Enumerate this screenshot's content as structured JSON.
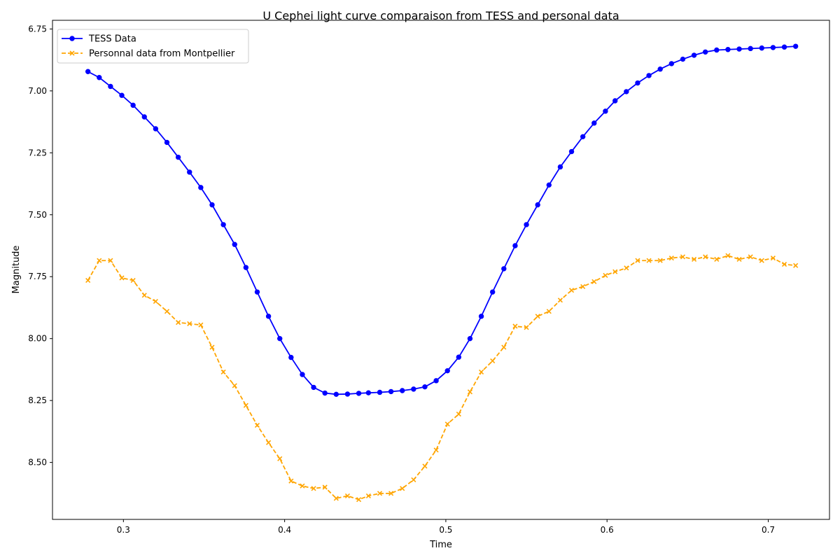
{
  "chart_data": {
    "type": "line",
    "title": "U Cephei light curve comparaison from TESS and personal data",
    "xlabel": "Time",
    "ylabel": "Magnitude",
    "xlim": [
      0.256,
      0.738
    ],
    "ylim": [
      8.73,
      6.715
    ],
    "y_inverted": true,
    "grid": false,
    "legend_position": "top-left",
    "x_ticks": [
      0.3,
      0.4,
      0.5,
      0.6,
      0.7
    ],
    "x_tick_labels": [
      "0.3",
      "0.4",
      "0.5",
      "0.6",
      "0.7"
    ],
    "y_ticks": [
      6.75,
      7.0,
      7.25,
      7.5,
      7.75,
      8.0,
      8.25,
      8.5
    ],
    "y_tick_labels": [
      "6.75",
      "7.00",
      "7.25",
      "7.50",
      "7.75",
      "8.00",
      "8.25",
      "8.50"
    ],
    "x": [
      0.278,
      0.285,
      0.292,
      0.299,
      0.306,
      0.313,
      0.32,
      0.327,
      0.334,
      0.341,
      0.348,
      0.355,
      0.362,
      0.369,
      0.376,
      0.383,
      0.39,
      0.397,
      0.404,
      0.411,
      0.418,
      0.425,
      0.432,
      0.439,
      0.446,
      0.452,
      0.459,
      0.466,
      0.473,
      0.48,
      0.487,
      0.494,
      0.501,
      0.508,
      0.515,
      0.522,
      0.529,
      0.536,
      0.543,
      0.55,
      0.557,
      0.564,
      0.571,
      0.578,
      0.585,
      0.592,
      0.599,
      0.605,
      0.612,
      0.619,
      0.626,
      0.633,
      0.64,
      0.647,
      0.654,
      0.661,
      0.668,
      0.675,
      0.682,
      0.689,
      0.696,
      0.703,
      0.71,
      0.717
    ],
    "series": [
      {
        "name": "TESS Data",
        "color": "#0000ff",
        "line_style": "solid",
        "marker": "circle",
        "values": [
          6.922,
          6.946,
          6.982,
          7.018,
          7.058,
          7.105,
          7.153,
          7.208,
          7.268,
          7.328,
          7.39,
          7.46,
          7.54,
          7.62,
          7.713,
          7.812,
          7.91,
          8.0,
          8.076,
          8.145,
          8.197,
          8.22,
          8.225,
          8.224,
          8.221,
          8.219,
          8.217,
          8.214,
          8.21,
          8.204,
          8.195,
          8.17,
          8.13,
          8.075,
          8.0,
          7.91,
          7.812,
          7.718,
          7.625,
          7.54,
          7.46,
          7.38,
          7.307,
          7.245,
          7.185,
          7.13,
          7.082,
          7.04,
          7.003,
          6.968,
          6.938,
          6.912,
          6.89,
          6.872,
          6.856,
          6.843,
          6.835,
          6.833,
          6.831,
          6.829,
          6.827,
          6.825,
          6.823,
          6.82
        ]
      },
      {
        "name": "Personnal data from Montpellier",
        "color": "#ffa500",
        "line_style": "dashed",
        "marker": "x",
        "values": [
          7.765,
          7.685,
          7.685,
          7.755,
          7.765,
          7.825,
          7.85,
          7.89,
          7.935,
          7.94,
          7.945,
          8.035,
          8.135,
          8.19,
          8.27,
          8.35,
          8.42,
          8.485,
          8.575,
          8.595,
          8.605,
          8.6,
          8.645,
          8.635,
          8.65,
          8.635,
          8.625,
          8.625,
          8.605,
          8.57,
          8.515,
          8.45,
          8.345,
          8.305,
          8.215,
          8.135,
          8.09,
          8.035,
          7.95,
          7.955,
          7.91,
          7.89,
          7.845,
          7.805,
          7.79,
          7.77,
          7.745,
          7.73,
          7.715,
          7.685,
          7.685,
          7.685,
          7.675,
          7.67,
          7.68,
          7.67,
          7.68,
          7.665,
          7.68,
          7.67,
          7.685,
          7.675,
          7.7,
          7.705
        ]
      }
    ]
  }
}
